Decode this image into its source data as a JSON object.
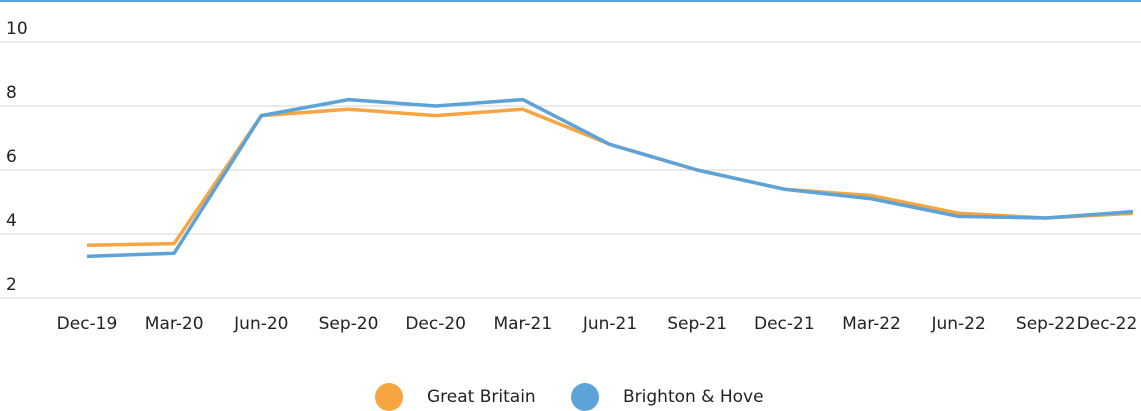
{
  "chart_data": {
    "type": "line",
    "categories": [
      "Dec-19",
      "Mar-20",
      "Jun-20",
      "Sep-20",
      "Dec-20",
      "Mar-21",
      "Jun-21",
      "Sep-21",
      "Dec-21",
      "Mar-22",
      "Jun-22",
      "Sep-22",
      "Dec-22"
    ],
    "series": [
      {
        "name": "Great Britain",
        "color": "#f7a541",
        "values": [
          3.65,
          3.7,
          7.7,
          7.9,
          7.7,
          7.9,
          6.8,
          6.0,
          5.4,
          5.2,
          4.65,
          4.5,
          4.65
        ]
      },
      {
        "name": "Brighton & Hove",
        "color": "#5ba3d9",
        "values": [
          3.3,
          3.4,
          7.7,
          8.2,
          8.0,
          8.2,
          6.8,
          6.0,
          5.4,
          5.1,
          4.55,
          4.5,
          4.7
        ]
      }
    ],
    "ylim": [
      2,
      10
    ],
    "yticks": [
      2,
      4,
      6,
      8,
      10
    ],
    "grid": true,
    "legend": "bottom"
  }
}
